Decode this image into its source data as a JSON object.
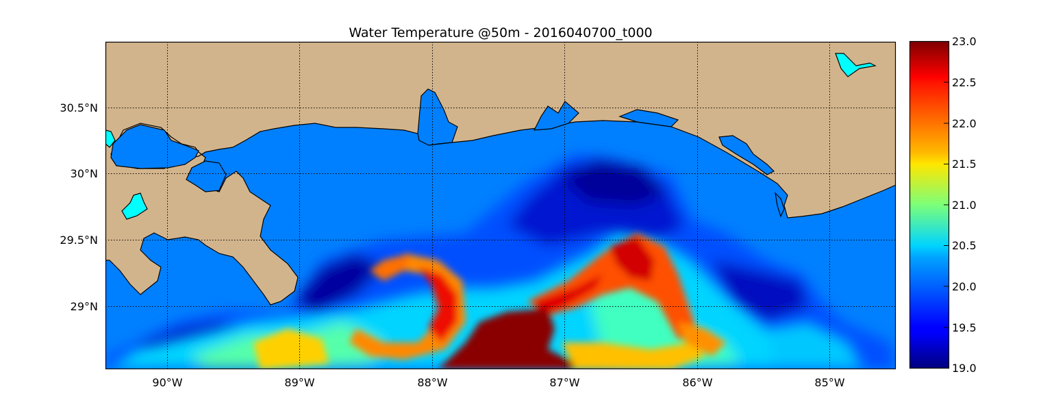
{
  "figure": {
    "title": "Water Temperature @50m - 2016040700_t000"
  },
  "map": {
    "lon_range": [
      -90.5,
      -84.5
    ],
    "lat_range": [
      28.55,
      31.0
    ],
    "lon_ticks": [
      {
        "value": -90,
        "label": "90°W"
      },
      {
        "value": -89,
        "label": "89°W"
      },
      {
        "value": -88,
        "label": "88°W"
      },
      {
        "value": -87,
        "label": "87°W"
      },
      {
        "value": -86,
        "label": "86°W"
      },
      {
        "value": -85,
        "label": "85°W"
      }
    ],
    "lat_ticks": [
      {
        "value": 30.5,
        "label": "30.5°N"
      },
      {
        "value": 30.0,
        "label": "30°N"
      },
      {
        "value": 29.5,
        "label": "29.5°N"
      },
      {
        "value": 29.0,
        "label": "29°N"
      }
    ],
    "land_color": "#d2b48c",
    "ocean_color": "#0080ff",
    "lake_color": "#00ffff",
    "coastline_color": "#000000",
    "grid": "dotted"
  },
  "colorbar": {
    "colormap": "jet",
    "vmin": 19.0,
    "vmax": 23.0,
    "tick_labels": [
      "23.0",
      "22.5",
      "22.0",
      "21.5",
      "21.0",
      "20.5",
      "20.0",
      "19.5",
      "19.0"
    ]
  }
}
